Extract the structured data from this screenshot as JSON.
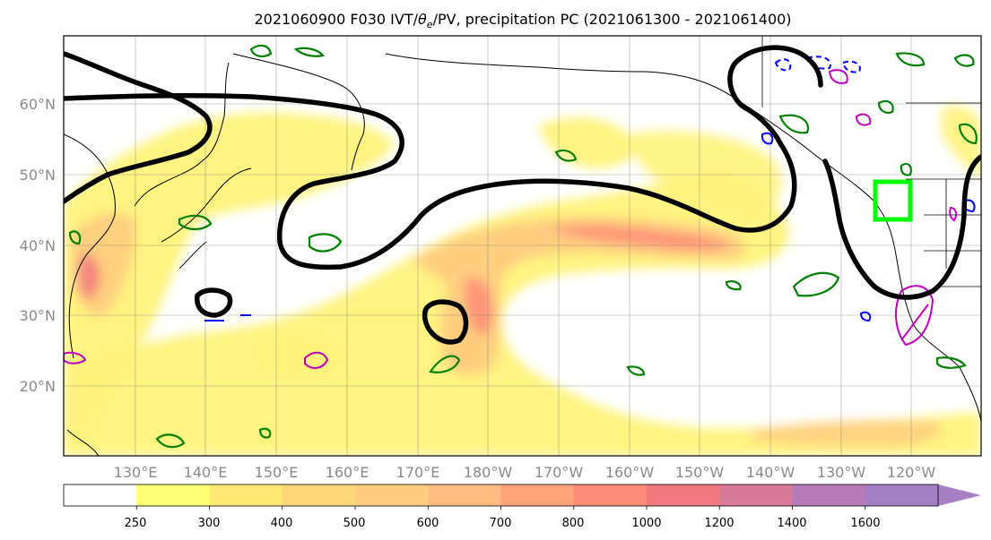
{
  "title": {
    "prefix": "2021060900 F030 IVT/",
    "theta": "θ",
    "theta_sub": "e",
    "suffix": "/PV, precipitation PC (2021061300 - 2021061400)"
  },
  "map": {
    "lat_labels": [
      "60°N",
      "50°N",
      "40°N",
      "30°N",
      "20°N"
    ],
    "lon_labels": [
      "130°E",
      "140°E",
      "150°E",
      "160°E",
      "170°E",
      "180°W",
      "170°W",
      "160°W",
      "150°W",
      "140°W",
      "130°W",
      "120°W"
    ],
    "contour_colors": {
      "black": "#000000",
      "green": "#007f00",
      "blue": "#0000ff",
      "magenta": "#bf00bf",
      "box": "#00ff00"
    }
  },
  "colorbar": {
    "tick_labels": [
      "250",
      "300",
      "400",
      "500",
      "600",
      "700",
      "800",
      "1000",
      "1200",
      "1400",
      "1600"
    ],
    "colors": [
      "#ffffff",
      "#ffff73",
      "#ffe873",
      "#ffd678",
      "#ffcc80",
      "#ffbb80",
      "#ffa37a",
      "#ff8a78",
      "#f2787f",
      "#d9799a",
      "#b87ab8",
      "#a57ec4"
    ]
  },
  "chart_data": {
    "type": "heatmap",
    "title": "2021060900 F030 IVT/θe/PV, precipitation PC (2021061300 - 2021061400)",
    "lat_range": [
      10,
      70
    ],
    "lon_range_east": [
      120,
      250
    ],
    "colorbar_levels": [
      250,
      300,
      400,
      500,
      600,
      700,
      800,
      1000,
      1200,
      1400,
      1600
    ],
    "colorbar_extend": "max"
  }
}
